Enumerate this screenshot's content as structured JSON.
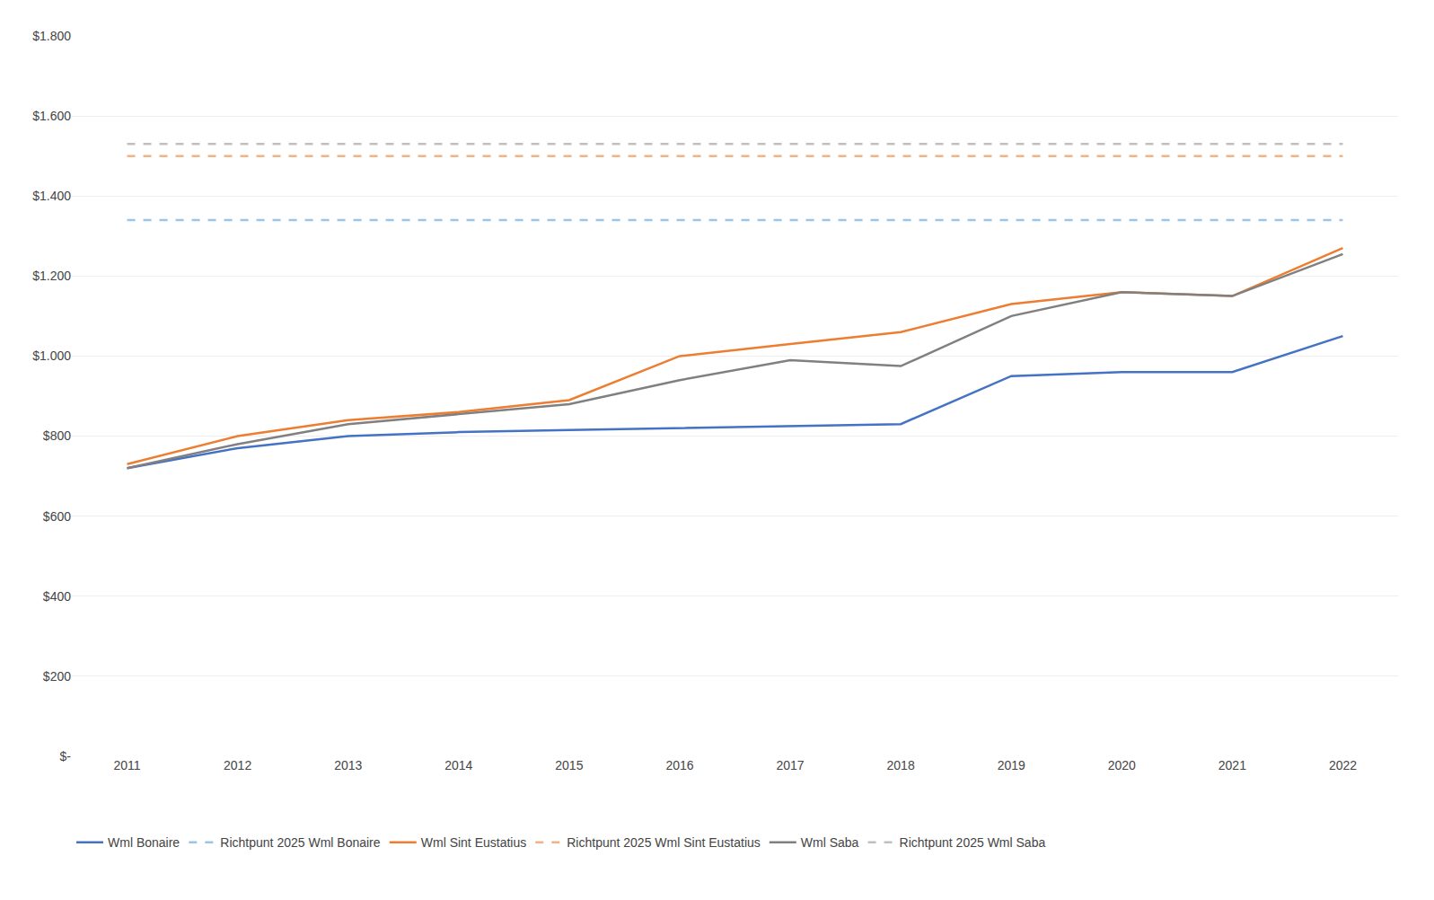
{
  "chart_data": {
    "type": "line",
    "x": [
      2011,
      2012,
      2013,
      2014,
      2015,
      2016,
      2017,
      2018,
      2019,
      2020,
      2021,
      2022
    ],
    "series": [
      {
        "name": "Wml Bonaire",
        "color": "#4472C4",
        "line_style": "solid",
        "values": [
          720,
          770,
          800,
          810,
          815,
          820,
          825,
          830,
          950,
          960,
          960,
          1050
        ]
      },
      {
        "name": "Richtpunt 2025 Wml Bonaire",
        "color": "#9DC3E6",
        "line_style": "dashed",
        "values": [
          1340,
          1340,
          1340,
          1340,
          1340,
          1340,
          1340,
          1340,
          1340,
          1340,
          1340,
          1340
        ]
      },
      {
        "name": "Wml Sint Eustatius",
        "color": "#ED7D31",
        "line_style": "solid",
        "values": [
          730,
          800,
          840,
          860,
          890,
          1000,
          1030,
          1060,
          1130,
          1160,
          1150,
          1270
        ]
      },
      {
        "name": "Richtpunt 2025 Wml Sint Eustatius",
        "color": "#F4B183",
        "line_style": "dashed",
        "values": [
          1500,
          1500,
          1500,
          1500,
          1500,
          1500,
          1500,
          1500,
          1500,
          1500,
          1500,
          1500
        ]
      },
      {
        "name": "Wml Saba",
        "color": "#808080",
        "line_style": "solid",
        "values": [
          720,
          780,
          830,
          855,
          880,
          940,
          990,
          975,
          1100,
          1160,
          1150,
          1255
        ]
      },
      {
        "name": "Richtpunt 2025 Wml Saba",
        "color": "#C0C0C0",
        "line_style": "dashed",
        "values": [
          1530,
          1530,
          1530,
          1530,
          1530,
          1530,
          1530,
          1530,
          1530,
          1530,
          1530,
          1530
        ]
      }
    ],
    "xlim": [
      2010.5,
      2022.5
    ],
    "xticks": [
      2011,
      2012,
      2013,
      2014,
      2015,
      2016,
      2017,
      2018,
      2019,
      2020,
      2021,
      2022
    ],
    "ylim": [
      0,
      1800
    ],
    "yticks": [
      {
        "value": 0,
        "label": "$-"
      },
      {
        "value": 200,
        "label": "$200"
      },
      {
        "value": 400,
        "label": "$400"
      },
      {
        "value": 600,
        "label": "$600"
      },
      {
        "value": 800,
        "label": "$800"
      },
      {
        "value": 1000,
        "label": "$1.000"
      },
      {
        "value": 1200,
        "label": "$1.200"
      },
      {
        "value": 1400,
        "label": "$1.400"
      },
      {
        "value": 1600,
        "label": "$1.600"
      },
      {
        "value": 1800,
        "label": "$1.800"
      }
    ],
    "grid": true,
    "legend": "bottom"
  }
}
